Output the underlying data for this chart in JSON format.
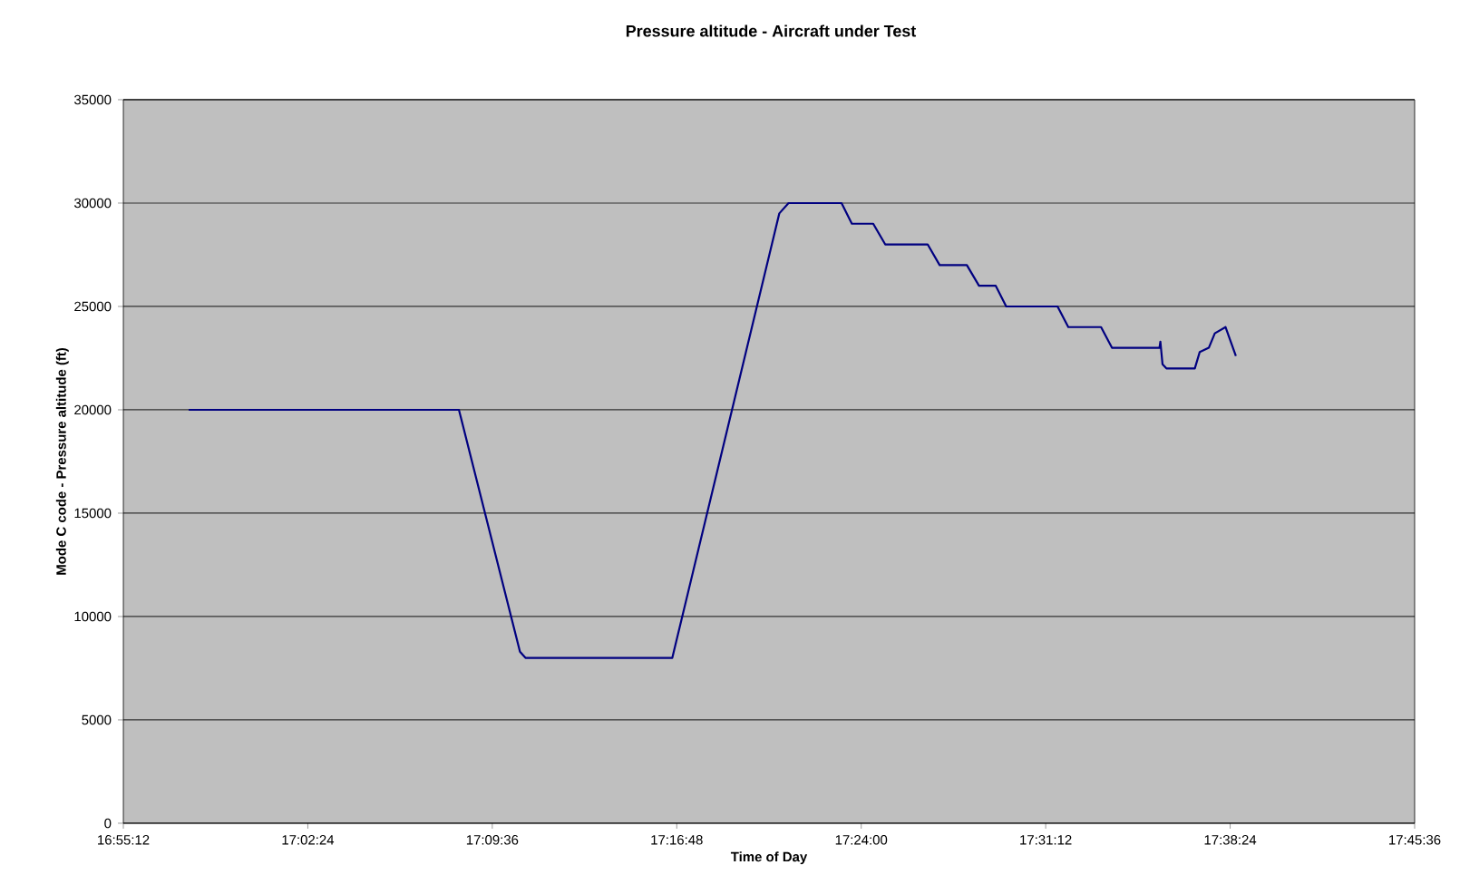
{
  "chart_data": {
    "type": "line",
    "title": "Pressure altitude - Aircraft under Test",
    "xlabel": "Time of Day",
    "ylabel": "Mode C code - Pressure altitude (ft)",
    "x": [
      16.9625,
      17.1383,
      17.178,
      17.1816,
      17.2771,
      17.3467,
      17.3527,
      17.3872,
      17.3939,
      17.4078,
      17.4156,
      17.4432,
      17.451,
      17.4687,
      17.4766,
      17.4875,
      17.4943,
      17.5277,
      17.5347,
      17.556,
      17.5631,
      17.594,
      17.5946,
      17.596,
      17.5985,
      17.617,
      17.6202,
      17.6261,
      17.63,
      17.637,
      17.6437
    ],
    "series": [
      {
        "color": "#000080",
        "values": [
          20000,
          20000,
          8300,
          8000,
          8000,
          29500,
          30000,
          30000,
          29000,
          29000,
          28000,
          28000,
          27000,
          27000,
          26000,
          26000,
          25000,
          25000,
          24000,
          24000,
          23000,
          23000,
          23300,
          22200,
          22000,
          22000,
          22800,
          23000,
          23700,
          24000,
          22600
        ]
      }
    ],
    "xlim": [
      16.92,
      17.76
    ],
    "ylim": [
      0,
      35000
    ],
    "xticks": [
      {
        "value": 16.92,
        "label": "16:55:12"
      },
      {
        "value": 17.04,
        "label": "17:02:24"
      },
      {
        "value": 17.16,
        "label": "17:09:36"
      },
      {
        "value": 17.28,
        "label": "17:16:48"
      },
      {
        "value": 17.4,
        "label": "17:24:00"
      },
      {
        "value": 17.52,
        "label": "17:31:12"
      },
      {
        "value": 17.64,
        "label": "17:38:24"
      },
      {
        "value": 17.76,
        "label": "17:45:36"
      }
    ],
    "yticks": [
      0,
      5000,
      10000,
      15000,
      20000,
      25000,
      30000,
      35000
    ],
    "grid": "y",
    "marker": "none",
    "line_style": "solid"
  }
}
